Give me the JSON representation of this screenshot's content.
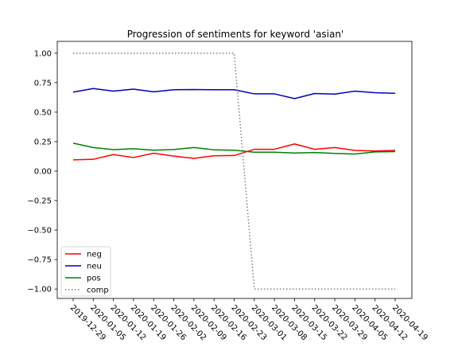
{
  "chart_data": {
    "type": "line",
    "title": "Progression of sentiments for keyword 'asian'",
    "xlabel": "",
    "ylabel": "",
    "categories": [
      "2019-12-29",
      "2020-01-05",
      "2020-01-12",
      "2020-01-19",
      "2020-01-26",
      "2020-02-02",
      "2020-02-09",
      "2020-02-16",
      "2020-02-23",
      "2020-03-01",
      "2020-03-08",
      "2020-03-15",
      "2020-03-22",
      "2020-03-29",
      "2020-04-05",
      "2020-04-12",
      "2020-04-19"
    ],
    "ylim": [
      -1.08,
      1.1
    ],
    "yticks": [
      1.0,
      0.75,
      0.5,
      0.25,
      0.0,
      -0.25,
      -0.5,
      -0.75,
      -1.0
    ],
    "ytick_labels": [
      "1.00",
      "0.75",
      "0.50",
      "0.25",
      "0.00",
      "−0.25",
      "−0.50",
      "−0.75",
      "−1.00"
    ],
    "grid": false,
    "legend_position": "lower-left",
    "series": [
      {
        "name": "neg",
        "color": "#ff0000",
        "style": "solid",
        "values": [
          0.095,
          0.1,
          0.14,
          0.115,
          0.152,
          0.127,
          0.108,
          0.13,
          0.132,
          0.185,
          0.185,
          0.23,
          0.185,
          0.2,
          0.175,
          0.17,
          0.175
        ]
      },
      {
        "name": "neu",
        "color": "#0000bf",
        "style": "solid",
        "values": [
          0.67,
          0.7,
          0.678,
          0.695,
          0.672,
          0.69,
          0.692,
          0.69,
          0.69,
          0.655,
          0.655,
          0.615,
          0.658,
          0.653,
          0.678,
          0.665,
          0.66
        ]
      },
      {
        "name": "pos",
        "color": "#008000",
        "style": "solid",
        "values": [
          0.237,
          0.2,
          0.182,
          0.19,
          0.177,
          0.183,
          0.2,
          0.18,
          0.177,
          0.16,
          0.16,
          0.153,
          0.158,
          0.15,
          0.145,
          0.163,
          0.165
        ]
      },
      {
        "name": "comp",
        "color": "#808080",
        "style": "dotted",
        "values": [
          1.0,
          1.0,
          1.0,
          1.0,
          1.0,
          1.0,
          1.0,
          1.0,
          1.0,
          -1.0,
          -1.0,
          -1.0,
          -1.0,
          -1.0,
          -1.0,
          -1.0,
          -1.0
        ]
      }
    ]
  }
}
